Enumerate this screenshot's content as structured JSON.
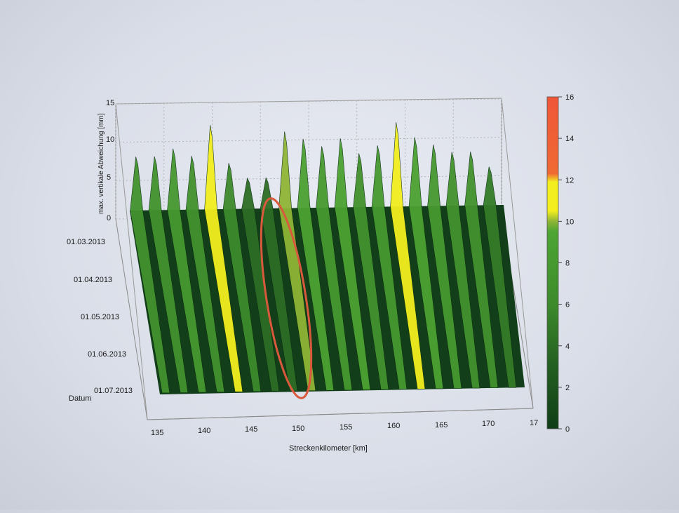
{
  "chart_data": {
    "type": "surface-3d",
    "title": "",
    "xlabel": "Streckenkilometer [km]",
    "ylabel": "Datum",
    "zlabel": "max. vertikale Abweichung [mm]",
    "x_ticks": [
      "135",
      "140",
      "145",
      "150",
      "155",
      "160",
      "165",
      "170",
      "17"
    ],
    "y_ticks": [
      "01.03.2013",
      "01.04.2013",
      "01.05.2013",
      "01.06.2013",
      "01.07.2013"
    ],
    "z_ticks": [
      "0",
      "5",
      "10",
      "15"
    ],
    "xlim": [
      135,
      175
    ],
    "zlim": [
      0,
      15
    ],
    "colorbar": {
      "ticks": [
        "0",
        "2",
        "4",
        "6",
        "8",
        "10",
        "12",
        "14",
        "16"
      ],
      "range": [
        0,
        16
      ],
      "stops": [
        {
          "value": 0,
          "color": "#0f3d17"
        },
        {
          "value": 3,
          "color": "#235f21"
        },
        {
          "value": 6,
          "color": "#3d8a2c"
        },
        {
          "value": 9.5,
          "color": "#4da533"
        },
        {
          "value": 10,
          "color": "#8fb536"
        },
        {
          "value": 10.5,
          "color": "#f2ee1f"
        },
        {
          "value": 11.9,
          "color": "#f2ee1f"
        },
        {
          "value": 12.3,
          "color": "#ef6a33"
        },
        {
          "value": 16,
          "color": "#ef5638"
        }
      ]
    },
    "series": [
      {
        "x": [
          135.5,
          137.5,
          139.5,
          141.5,
          143.5,
          145.5,
          147.5,
          149.5,
          151.5,
          153.5,
          155.5,
          157.5,
          159.5,
          161.5,
          163.5,
          165.5,
          167.5,
          169.5,
          171.5,
          173.5
        ],
        "values": [
          7,
          7,
          8,
          7,
          11,
          6,
          4,
          4,
          10,
          9,
          8,
          9,
          7,
          8,
          11,
          9,
          8,
          7,
          7,
          5
        ]
      }
    ],
    "highlight": {
      "x_range": [
        146,
        150
      ],
      "shape": "ellipse",
      "color": "#d9593d"
    }
  }
}
